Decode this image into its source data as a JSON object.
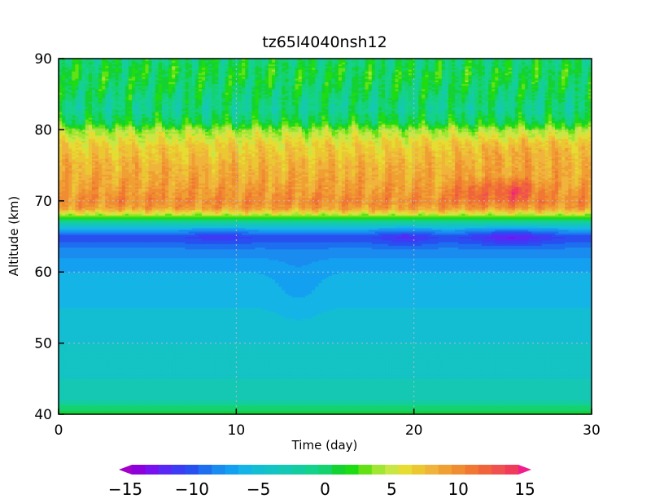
{
  "chart_data": {
    "type": "heatmap",
    "title": "tz65l4040nsh12",
    "xlabel": "Time (day)",
    "ylabel": "Altitude (km)",
    "xlim": [
      0,
      30
    ],
    "ylim": [
      40,
      90
    ],
    "x_ticks": [
      0,
      10,
      20,
      30
    ],
    "y_ticks": [
      40,
      50,
      60,
      70,
      80,
      90
    ],
    "x_tick_labels": [
      "0",
      "10",
      "20",
      "30"
    ],
    "y_tick_labels": [
      "40",
      "50",
      "60",
      "70",
      "80",
      "90"
    ],
    "grid": true,
    "colorbar": {
      "min": -15,
      "max": 15,
      "step": 1,
      "ticks": [
        -15,
        -10,
        -5,
        0,
        5,
        10,
        15
      ],
      "tick_labels": [
        "−15",
        "−10",
        "−5",
        "0",
        "5",
        "10",
        "15"
      ],
      "extend": "both",
      "placement": "bottom"
    },
    "altitude_profile": {
      "altitude_km": [
        40,
        41,
        42,
        45,
        50,
        55,
        60,
        63,
        65,
        66,
        67,
        68,
        69,
        70,
        72,
        75,
        78,
        80,
        81,
        83,
        85,
        88,
        90
      ],
      "value": [
        1,
        0,
        -2.5,
        -3.5,
        -4.5,
        -5.5,
        -6.5,
        -8,
        -10.5,
        -7,
        -2,
        4,
        9,
        10,
        9,
        8,
        6.5,
        4,
        1,
        -1,
        0,
        1,
        0
      ]
    },
    "features": [
      {
        "label": "minimum near 65 km, day ~25",
        "time_day": 25.5,
        "altitude_km": 65,
        "value": -13
      },
      {
        "label": "minimum near 65 km, day ~19",
        "time_day": 19.5,
        "altitude_km": 65,
        "value": -12
      },
      {
        "label": "maximum near 71 km, day ~25",
        "time_day": 25.5,
        "altitude_km": 71.5,
        "value": 14
      },
      {
        "label": "maximum near 72 km, day ~23",
        "time_day": 23,
        "altitude_km": 72.5,
        "value": 12
      }
    ]
  }
}
